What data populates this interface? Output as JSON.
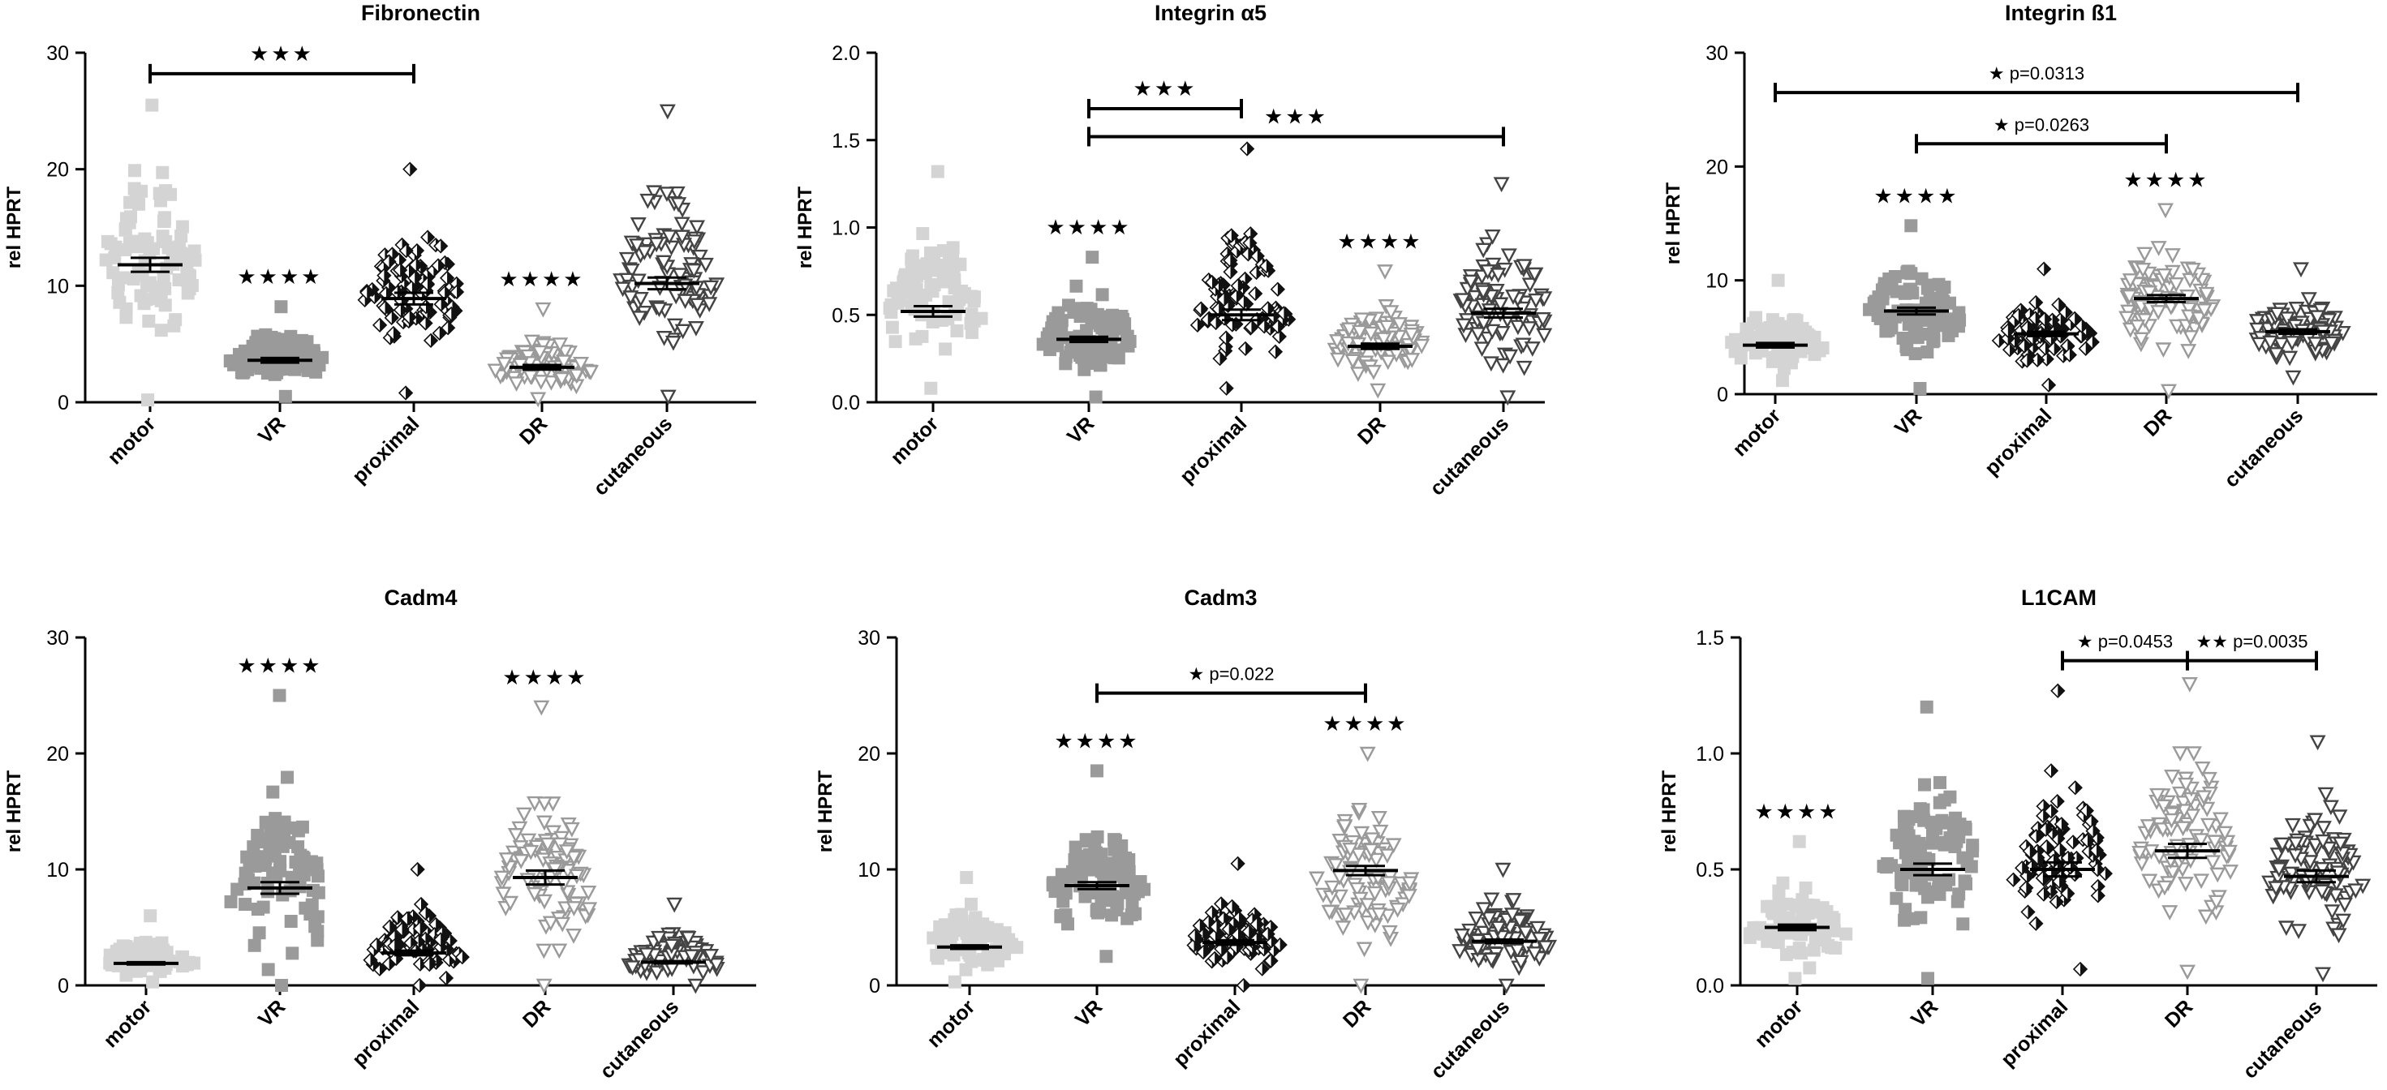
{
  "chart_data": [
    {
      "type": "scatter",
      "title": "Fibronectin",
      "ylabel": "rel HPRT",
      "ylim": [
        0,
        30
      ],
      "yticks": [
        0,
        10,
        20,
        30
      ],
      "categories": [
        "motor",
        "VR",
        "proximal",
        "DR",
        "cutaneous"
      ],
      "groups": [
        {
          "name": "motor",
          "mean": 11.8,
          "sem": 0.6,
          "min": 0.2,
          "max": 25.5,
          "n": 90,
          "peak": 12
        },
        {
          "name": "VR",
          "mean": 3.6,
          "sem": 0.2,
          "min": 0.5,
          "max": 8.2,
          "n": 90,
          "peak": 3.5
        },
        {
          "name": "proximal",
          "mean": 8.9,
          "sem": 0.5,
          "min": 0.8,
          "max": 20.0,
          "n": 90,
          "peak": 9
        },
        {
          "name": "DR",
          "mean": 3.0,
          "sem": 0.2,
          "min": 0.3,
          "max": 8.0,
          "n": 90,
          "peak": 2.5
        },
        {
          "name": "cutaneous",
          "mean": 10.2,
          "sem": 0.5,
          "min": 0.5,
          "max": 25.0,
          "n": 90,
          "peak": 10
        }
      ],
      "group_stars": [
        {
          "group": "VR",
          "label": "****"
        },
        {
          "group": "DR",
          "label": "****"
        }
      ],
      "brackets": [
        {
          "from": "motor",
          "to": "proximal",
          "label": "***",
          "level": 28.2
        }
      ]
    },
    {
      "type": "scatter",
      "title": "Integrin α5",
      "ylabel": "rel HPRT",
      "ylim": [
        0,
        2.0
      ],
      "yticks": [
        0.0,
        0.5,
        1.0,
        1.5,
        2.0
      ],
      "categories": [
        "motor",
        "VR",
        "proximal",
        "DR",
        "cutaneous"
      ],
      "groups": [
        {
          "name": "motor",
          "mean": 0.52,
          "sem": 0.03,
          "min": 0.08,
          "max": 1.32,
          "n": 90,
          "peak": 0.5
        },
        {
          "name": "VR",
          "mean": 0.36,
          "sem": 0.015,
          "min": 0.03,
          "max": 0.83,
          "n": 90,
          "peak": 0.35
        },
        {
          "name": "proximal",
          "mean": 0.5,
          "sem": 0.03,
          "min": 0.08,
          "max": 1.45,
          "n": 90,
          "peak": 0.45
        },
        {
          "name": "DR",
          "mean": 0.32,
          "sem": 0.015,
          "min": 0.07,
          "max": 0.75,
          "n": 90,
          "peak": 0.3
        },
        {
          "name": "cutaneous",
          "mean": 0.51,
          "sem": 0.025,
          "min": 0.03,
          "max": 1.25,
          "n": 90,
          "peak": 0.5
        }
      ],
      "group_stars": [
        {
          "group": "VR",
          "label": "****"
        },
        {
          "group": "DR",
          "label": "****"
        }
      ],
      "brackets": [
        {
          "from": "VR",
          "to": "proximal",
          "label": "***",
          "level": 1.68
        },
        {
          "from": "VR",
          "to": "cutaneous",
          "label": "***",
          "level": 1.52
        }
      ]
    },
    {
      "type": "scatter",
      "title": "Integrin ß1",
      "ylabel": "rel HPRT",
      "ylim": [
        0,
        30
      ],
      "yticks": [
        0,
        10,
        20,
        30
      ],
      "categories": [
        "motor",
        "VR",
        "proximal",
        "DR",
        "cutaneous"
      ],
      "groups": [
        {
          "name": "motor",
          "mean": 4.3,
          "sem": 0.2,
          "min": 1.2,
          "max": 10.0,
          "n": 90,
          "peak": 4
        },
        {
          "name": "VR",
          "mean": 7.3,
          "sem": 0.3,
          "min": 0.5,
          "max": 14.8,
          "n": 90,
          "peak": 7
        },
        {
          "name": "proximal",
          "mean": 5.3,
          "sem": 0.2,
          "min": 0.8,
          "max": 11.0,
          "n": 90,
          "peak": 5
        },
        {
          "name": "DR",
          "mean": 8.4,
          "sem": 0.3,
          "min": 0.3,
          "max": 16.2,
          "n": 90,
          "peak": 8
        },
        {
          "name": "cutaneous",
          "mean": 5.5,
          "sem": 0.2,
          "min": 1.5,
          "max": 11.0,
          "n": 90,
          "peak": 5.5
        }
      ],
      "group_stars": [
        {
          "group": "VR",
          "label": "****"
        },
        {
          "group": "DR",
          "label": "****"
        }
      ],
      "brackets": [
        {
          "from": "motor",
          "to": "cutaneous",
          "label": "p=0.0313",
          "stars": "*",
          "level": 26.5
        },
        {
          "from": "VR",
          "to": "DR",
          "label": "p=0.0263",
          "stars": "*",
          "level": 22.0
        }
      ]
    },
    {
      "type": "scatter",
      "title": "Cadm4",
      "ylabel": "rel HPRT",
      "ylim": [
        0,
        30
      ],
      "yticks": [
        0,
        10,
        20,
        30
      ],
      "categories": [
        "motor",
        "VR",
        "proximal",
        "DR",
        "cutaneous"
      ],
      "groups": [
        {
          "name": "motor",
          "mean": 1.9,
          "sem": 0.1,
          "min": 0.3,
          "max": 6.0,
          "n": 80,
          "peak": 1.8
        },
        {
          "name": "VR",
          "mean": 8.4,
          "sem": 0.5,
          "min": 0.0,
          "max": 25.0,
          "n": 90,
          "peak": 7
        },
        {
          "name": "proximal",
          "mean": 2.8,
          "sem": 0.2,
          "min": 0.0,
          "max": 10.0,
          "n": 90,
          "peak": 2.5
        },
        {
          "name": "DR",
          "mean": 9.3,
          "sem": 0.6,
          "min": 0.0,
          "max": 24.0,
          "n": 90,
          "peak": 8
        },
        {
          "name": "cutaneous",
          "mean": 2.0,
          "sem": 0.1,
          "min": 0.0,
          "max": 7.0,
          "n": 90,
          "peak": 1.8
        }
      ],
      "group_stars": [
        {
          "group": "VR",
          "label": "****"
        },
        {
          "group": "DR",
          "label": "****"
        }
      ],
      "brackets": []
    },
    {
      "type": "scatter",
      "title": "Cadm3",
      "ylabel": "rel HPRT",
      "ylim": [
        0,
        30
      ],
      "yticks": [
        0,
        10,
        20,
        30
      ],
      "categories": [
        "motor",
        "VR",
        "proximal",
        "DR",
        "cutaneous"
      ],
      "groups": [
        {
          "name": "motor",
          "mean": 3.3,
          "sem": 0.15,
          "min": 0.3,
          "max": 9.3,
          "n": 80,
          "peak": 3.2
        },
        {
          "name": "VR",
          "mean": 8.6,
          "sem": 0.3,
          "min": 2.5,
          "max": 18.5,
          "n": 90,
          "peak": 8
        },
        {
          "name": "proximal",
          "mean": 3.7,
          "sem": 0.2,
          "min": 0.0,
          "max": 10.5,
          "n": 90,
          "peak": 3.5
        },
        {
          "name": "DR",
          "mean": 9.9,
          "sem": 0.4,
          "min": 0.0,
          "max": 20.0,
          "n": 90,
          "peak": 9
        },
        {
          "name": "cutaneous",
          "mean": 3.8,
          "sem": 0.15,
          "min": 0.0,
          "max": 10.0,
          "n": 90,
          "peak": 3.5
        }
      ],
      "group_stars": [
        {
          "group": "VR",
          "label": "****"
        },
        {
          "group": "DR",
          "label": "****"
        }
      ],
      "brackets": [
        {
          "from": "VR",
          "to": "DR",
          "label": "p=0.022",
          "stars": "*",
          "level": 25.2
        }
      ]
    },
    {
      "type": "scatter",
      "title": "L1CAM",
      "ylabel": "rel HPRT",
      "ylim": [
        0,
        1.5
      ],
      "yticks": [
        0.0,
        0.5,
        1.0,
        1.5
      ],
      "categories": [
        "motor",
        "VR",
        "proximal",
        "DR",
        "cutaneous"
      ],
      "groups": [
        {
          "name": "motor",
          "mean": 0.25,
          "sem": 0.012,
          "min": 0.03,
          "max": 0.62,
          "n": 90,
          "peak": 0.22
        },
        {
          "name": "VR",
          "mean": 0.5,
          "sem": 0.025,
          "min": 0.03,
          "max": 1.2,
          "n": 90,
          "peak": 0.5
        },
        {
          "name": "proximal",
          "mean": 0.5,
          "sem": 0.03,
          "min": 0.07,
          "max": 1.27,
          "n": 90,
          "peak": 0.45
        },
        {
          "name": "DR",
          "mean": 0.58,
          "sem": 0.03,
          "min": 0.06,
          "max": 1.3,
          "n": 90,
          "peak": 0.58
        },
        {
          "name": "cutaneous",
          "mean": 0.47,
          "sem": 0.025,
          "min": 0.05,
          "max": 1.05,
          "n": 90,
          "peak": 0.45
        }
      ],
      "group_stars": [
        {
          "group": "motor",
          "label": "****"
        }
      ],
      "brackets": [
        {
          "from": "proximal",
          "to": "DR",
          "label": "p=0.0453",
          "stars": "*",
          "level": 1.4
        },
        {
          "from": "DR",
          "to": "cutaneous",
          "label": "p=0.0035",
          "stars": "**",
          "level": 1.4
        }
      ]
    }
  ],
  "marker_styles": {
    "motor": {
      "shape": "square",
      "fill": "#d4d4d4",
      "stroke": "none"
    },
    "VR": {
      "shape": "square",
      "fill": "#9a9a9a",
      "stroke": "none"
    },
    "proximal": {
      "shape": "diamond-half",
      "fill": "#111111",
      "stroke": "#111111"
    },
    "DR": {
      "shape": "triangle-down-open",
      "fill": "#ffffff",
      "stroke": "#9a9a9a"
    },
    "cutaneous": {
      "shape": "triangle-down-open",
      "fill": "#ffffff",
      "stroke": "#444444"
    }
  },
  "colors": {
    "axis": "#000000",
    "mean_bar": "#000000"
  }
}
